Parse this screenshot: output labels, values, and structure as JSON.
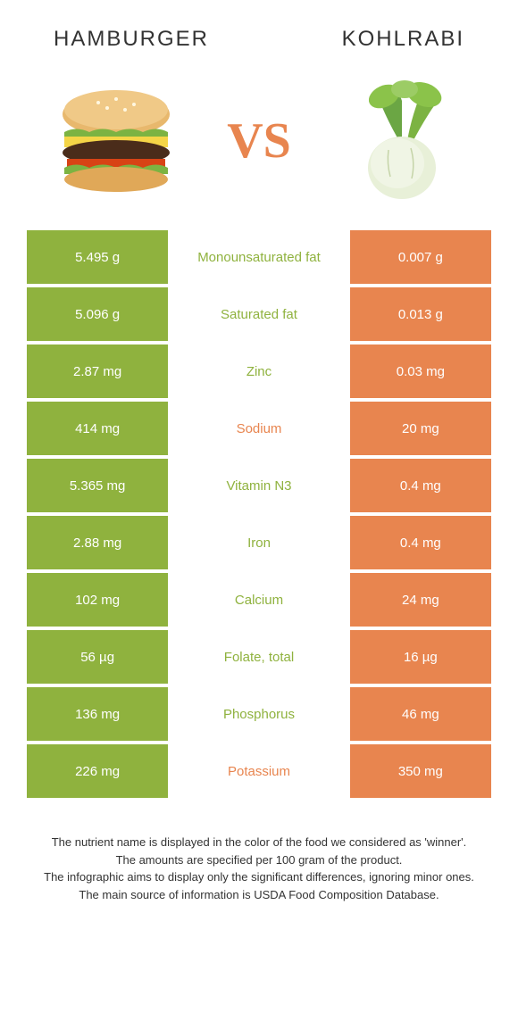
{
  "header": {
    "left_title": "HAMBURGER",
    "right_title": "KOHLRABI",
    "vs_text": "VS"
  },
  "colors": {
    "hamburger": "#8fb23e",
    "kohlrabi": "#e8854f",
    "middle_bg": "#ffffff"
  },
  "rows": [
    {
      "left": "5.495 g",
      "label": "Monounsaturated fat",
      "right": "0.007 g",
      "winner": "hamburger"
    },
    {
      "left": "5.096 g",
      "label": "Saturated fat",
      "right": "0.013 g",
      "winner": "hamburger"
    },
    {
      "left": "2.87 mg",
      "label": "Zinc",
      "right": "0.03 mg",
      "winner": "hamburger"
    },
    {
      "left": "414 mg",
      "label": "Sodium",
      "right": "20 mg",
      "winner": "kohlrabi"
    },
    {
      "left": "5.365 mg",
      "label": "Vitamin N3",
      "right": "0.4 mg",
      "winner": "hamburger"
    },
    {
      "left": "2.88 mg",
      "label": "Iron",
      "right": "0.4 mg",
      "winner": "hamburger"
    },
    {
      "left": "102 mg",
      "label": "Calcium",
      "right": "24 mg",
      "winner": "hamburger"
    },
    {
      "left": "56 µg",
      "label": "Folate, total",
      "right": "16 µg",
      "winner": "hamburger"
    },
    {
      "left": "136 mg",
      "label": "Phosphorus",
      "right": "46 mg",
      "winner": "hamburger"
    },
    {
      "left": "226 mg",
      "label": "Potassium",
      "right": "350 mg",
      "winner": "kohlrabi"
    }
  ],
  "footer": {
    "line1": "The nutrient name is displayed in the color of the food we considered as 'winner'.",
    "line2": "The amounts are specified per 100 gram of the product.",
    "line3": "The infographic aims to display only the significant differences, ignoring minor ones.",
    "line4": "The main source of information is USDA Food Composition Database."
  }
}
